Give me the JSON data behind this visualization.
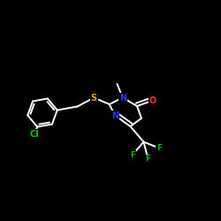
{
  "background_color": "#000000",
  "bond_color": "#ffffff",
  "atom_colors": {
    "N": "#3333ff",
    "S": "#ddaa00",
    "O": "#ff3300",
    "Cl": "#00cc00",
    "F": "#00bb00"
  },
  "figsize": [
    2.5,
    2.5
  ],
  "dpi": 100,
  "lw": 1.4,
  "fs": 7.0
}
